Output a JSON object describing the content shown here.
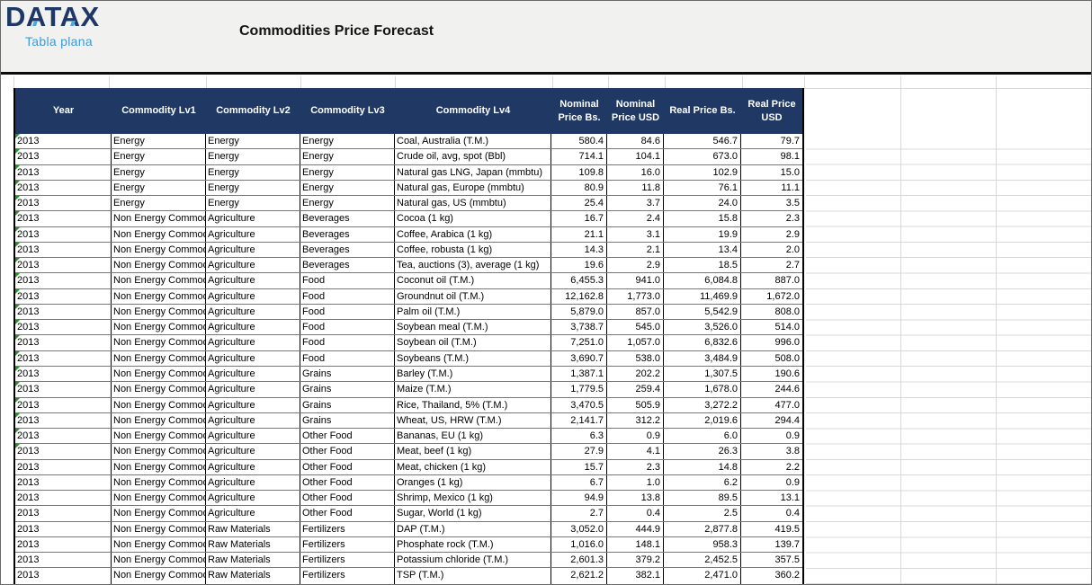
{
  "colors": {
    "header_bg": "#1F3864",
    "logo_navy": "#1E3765",
    "accent_blue": "#3D9BD8",
    "indicator_green": "#1E9B1E",
    "band_gray": "#F1F1F0"
  },
  "header": {
    "logo_title": "DATAX",
    "logo_subtitle": "Tabla plana",
    "title": "Commodities Price Forecast"
  },
  "table": {
    "columns": [
      "Year",
      "Commodity Lv1",
      "Commodity Lv2",
      "Commodity Lv3",
      "Commodity Lv4",
      "Nominal Price Bs.",
      "Nominal Price USD",
      "Real Price Bs.",
      "Real Price USD"
    ],
    "rows": [
      {
        "flag": true,
        "cells": [
          "2013",
          "Energy",
          "Energy",
          "Energy",
          "Coal, Australia (T.M.)",
          "580.4",
          "84.6",
          "546.7",
          "79.7"
        ]
      },
      {
        "flag": true,
        "cells": [
          "2013",
          "Energy",
          "Energy",
          "Energy",
          "Crude oil, avg, spot (Bbl)",
          "714.1",
          "104.1",
          "673.0",
          "98.1"
        ]
      },
      {
        "flag": true,
        "cells": [
          "2013",
          "Energy",
          "Energy",
          "Energy",
          "Natural gas LNG, Japan (mmbtu)",
          "109.8",
          "16.0",
          "102.9",
          "15.0"
        ]
      },
      {
        "flag": true,
        "cells": [
          "2013",
          "Energy",
          "Energy",
          "Energy",
          "Natural gas, Europe (mmbtu)",
          "80.9",
          "11.8",
          "76.1",
          "11.1"
        ]
      },
      {
        "flag": true,
        "cells": [
          "2013",
          "Energy",
          "Energy",
          "Energy",
          "Natural gas, US (mmbtu)",
          "25.4",
          "3.7",
          "24.0",
          "3.5"
        ]
      },
      {
        "flag": true,
        "cells": [
          "2013",
          "Non Energy Commod",
          "Agriculture",
          "Beverages",
          "Cocoa (1 kg)",
          "16.7",
          "2.4",
          "15.8",
          "2.3"
        ]
      },
      {
        "flag": true,
        "cells": [
          "2013",
          "Non Energy Commod",
          "Agriculture",
          "Beverages",
          "Coffee, Arabica (1 kg)",
          "21.1",
          "3.1",
          "19.9",
          "2.9"
        ]
      },
      {
        "flag": true,
        "cells": [
          "2013",
          "Non Energy Commod",
          "Agriculture",
          "Beverages",
          "Coffee, robusta (1 kg)",
          "14.3",
          "2.1",
          "13.4",
          "2.0"
        ]
      },
      {
        "flag": true,
        "cells": [
          "2013",
          "Non Energy Commod",
          "Agriculture",
          "Beverages",
          "Tea, auctions (3), average (1 kg)",
          "19.6",
          "2.9",
          "18.5",
          "2.7"
        ]
      },
      {
        "flag": true,
        "cells": [
          "2013",
          "Non Energy Commod",
          "Agriculture",
          "Food",
          "Coconut oil (T.M.)",
          "6,455.3",
          "941.0",
          "6,084.8",
          "887.0"
        ]
      },
      {
        "flag": true,
        "cells": [
          "2013",
          "Non Energy Commod",
          "Agriculture",
          "Food",
          "Groundnut oil (T.M.)",
          "12,162.8",
          "1,773.0",
          "11,469.9",
          "1,672.0"
        ]
      },
      {
        "flag": true,
        "cells": [
          "2013",
          "Non Energy Commod",
          "Agriculture",
          "Food",
          "Palm oil (T.M.)",
          "5,879.0",
          "857.0",
          "5,542.9",
          "808.0"
        ]
      },
      {
        "flag": true,
        "cells": [
          "2013",
          "Non Energy Commod",
          "Agriculture",
          "Food",
          "Soybean meal (T.M.)",
          "3,738.7",
          "545.0",
          "3,526.0",
          "514.0"
        ]
      },
      {
        "flag": true,
        "cells": [
          "2013",
          "Non Energy Commod",
          "Agriculture",
          "Food",
          "Soybean oil (T.M.)",
          "7,251.0",
          "1,057.0",
          "6,832.6",
          "996.0"
        ]
      },
      {
        "flag": true,
        "cells": [
          "2013",
          "Non Energy Commod",
          "Agriculture",
          "Food",
          "Soybeans (T.M.)",
          "3,690.7",
          "538.0",
          "3,484.9",
          "508.0"
        ]
      },
      {
        "flag": true,
        "cells": [
          "2013",
          "Non Energy Commod",
          "Agriculture",
          "Grains",
          "Barley (T.M.)",
          "1,387.1",
          "202.2",
          "1,307.5",
          "190.6"
        ]
      },
      {
        "flag": true,
        "cells": [
          "2013",
          "Non Energy Commod",
          "Agriculture",
          "Grains",
          "Maize (T.M.)",
          "1,779.5",
          "259.4",
          "1,678.0",
          "244.6"
        ]
      },
      {
        "flag": true,
        "cells": [
          "2013",
          "Non Energy Commod",
          "Agriculture",
          "Grains",
          "Rice, Thailand, 5% (T.M.)",
          "3,470.5",
          "505.9",
          "3,272.2",
          "477.0"
        ]
      },
      {
        "flag": true,
        "cells": [
          "2013",
          "Non Energy Commod",
          "Agriculture",
          "Grains",
          "Wheat, US, HRW (T.M.)",
          "2,141.7",
          "312.2",
          "2,019.6",
          "294.4"
        ]
      },
      {
        "flag": true,
        "cells": [
          "2013",
          "Non Energy Commod",
          "Agriculture",
          "Other Food",
          "Bananas, EU (1 kg)",
          "6.3",
          "0.9",
          "6.0",
          "0.9"
        ]
      },
      {
        "flag": true,
        "cells": [
          "2013",
          "Non Energy Commod",
          "Agriculture",
          "Other Food",
          "Meat, beef (1 kg)",
          "27.9",
          "4.1",
          "26.3",
          "3.8"
        ]
      },
      {
        "flag": false,
        "cells": [
          "2013",
          "Non Energy Commod",
          "Agriculture",
          "Other Food",
          "Meat, chicken (1 kg)",
          "15.7",
          "2.3",
          "14.8",
          "2.2"
        ]
      },
      {
        "flag": false,
        "cells": [
          "2013",
          "Non Energy Commod",
          "Agriculture",
          "Other Food",
          "Oranges (1 kg)",
          "6.7",
          "1.0",
          "6.2",
          "0.9"
        ]
      },
      {
        "flag": false,
        "cells": [
          "2013",
          "Non Energy Commod",
          "Agriculture",
          "Other Food",
          "Shrimp, Mexico (1 kg)",
          "94.9",
          "13.8",
          "89.5",
          "13.1"
        ]
      },
      {
        "flag": false,
        "cells": [
          "2013",
          "Non Energy Commod",
          "Agriculture",
          "Other Food",
          "Sugar, World (1 kg)",
          "2.7",
          "0.4",
          "2.5",
          "0.4"
        ]
      },
      {
        "flag": false,
        "cells": [
          "2013",
          "Non Energy Commod",
          "Raw Materials",
          "Fertilizers",
          "DAP (T.M.)",
          "3,052.0",
          "444.9",
          "2,877.8",
          "419.5"
        ]
      },
      {
        "flag": false,
        "cells": [
          "2013",
          "Non Energy Commod",
          "Raw Materials",
          "Fertilizers",
          "Phosphate rock (T.M.)",
          "1,016.0",
          "148.1",
          "958.3",
          "139.7"
        ]
      },
      {
        "flag": false,
        "cells": [
          "2013",
          "Non Energy Commod",
          "Raw Materials",
          "Fertilizers",
          "Potassium chloride (T.M.)",
          "2,601.3",
          "379.2",
          "2,452.5",
          "357.5"
        ]
      },
      {
        "flag": false,
        "cells": [
          "2013",
          "Non Energy Commod",
          "Raw Materials",
          "Fertilizers",
          "TSP (T.M.)",
          "2,621.2",
          "382.1",
          "2,471.0",
          "360.2"
        ]
      }
    ]
  }
}
